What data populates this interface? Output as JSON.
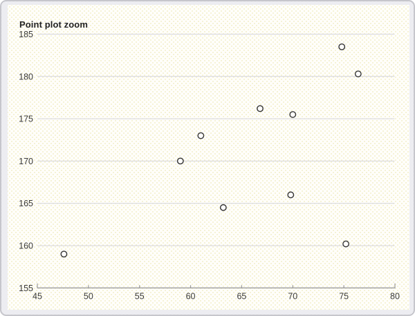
{
  "chart_data": {
    "type": "scatter",
    "title": "Point plot zoom",
    "xlabel": "",
    "ylabel": "",
    "xlim": [
      45,
      80
    ],
    "ylim": [
      155,
      185
    ],
    "xticks": [
      45,
      50,
      55,
      60,
      65,
      70,
      75,
      80
    ],
    "yticks": [
      155,
      160,
      165,
      170,
      175,
      180,
      185
    ],
    "grid": "horizontal-only",
    "legend": "none",
    "points": [
      {
        "x": 47.6,
        "y": 159.0
      },
      {
        "x": 59.0,
        "y": 170.0
      },
      {
        "x": 61.0,
        "y": 173.0
      },
      {
        "x": 63.2,
        "y": 164.5
      },
      {
        "x": 66.8,
        "y": 176.2
      },
      {
        "x": 69.8,
        "y": 166.0
      },
      {
        "x": 70.0,
        "y": 175.5
      },
      {
        "x": 74.8,
        "y": 183.5
      },
      {
        "x": 75.2,
        "y": 160.2
      },
      {
        "x": 76.4,
        "y": 180.3
      }
    ],
    "colors": {
      "point_stroke": "#333333",
      "point_fill": "#fffefc",
      "gridline": "#d4d4da",
      "axis": "#9b9b9b",
      "tick_label": "#3a3a3a",
      "title": "#222222",
      "panel_bg": "#fffefa",
      "margin_checker": "#dadae3"
    }
  }
}
